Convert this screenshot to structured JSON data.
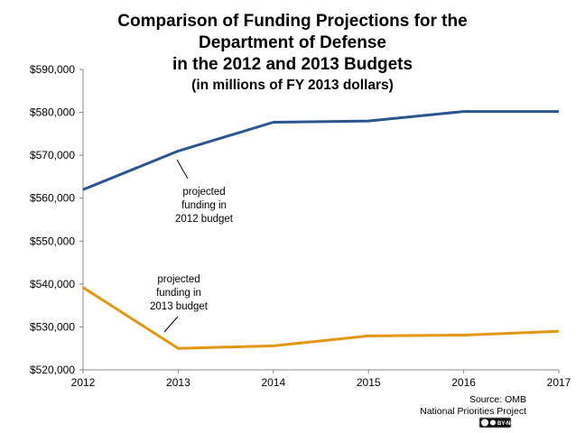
{
  "chart_data": {
    "type": "line",
    "title_lines": [
      "Comparison of Funding Projections for the",
      "Department of Defense",
      "in the 2012 and 2013 Budgets",
      "(in millions of FY 2013 dollars)"
    ],
    "xlabel": "",
    "ylabel": "",
    "x": [
      "2012",
      "2013",
      "2014",
      "2015",
      "2016",
      "2017"
    ],
    "ylim": [
      520000,
      590000
    ],
    "y_ticks": [
      520000,
      530000,
      540000,
      550000,
      560000,
      570000,
      580000,
      590000
    ],
    "y_tick_labels": [
      "$520,000",
      "$530,000",
      "$540,000",
      "$550,000",
      "$560,000",
      "$570,000",
      "$580,000",
      "$590,000"
    ],
    "grid": false,
    "series": [
      {
        "key": "s2012",
        "values": [
          562000,
          571000,
          577700,
          578000,
          580200,
          580200
        ],
        "color": "#2a5591"
      },
      {
        "key": "s2013",
        "values": [
          539200,
          525000,
          525600,
          527900,
          528100,
          529000
        ],
        "color": "#e3960f"
      }
    ],
    "annotations": [
      {
        "lines": [
          "projected",
          "funding in",
          "2012 budget"
        ],
        "series": "s2012"
      },
      {
        "lines": [
          "projected",
          "funding in",
          "2013 budget"
        ],
        "series": "s2013"
      }
    ]
  },
  "source": [
    "Source: OMB",
    "National Priorities Project"
  ],
  "license_badge": "BY-NC"
}
